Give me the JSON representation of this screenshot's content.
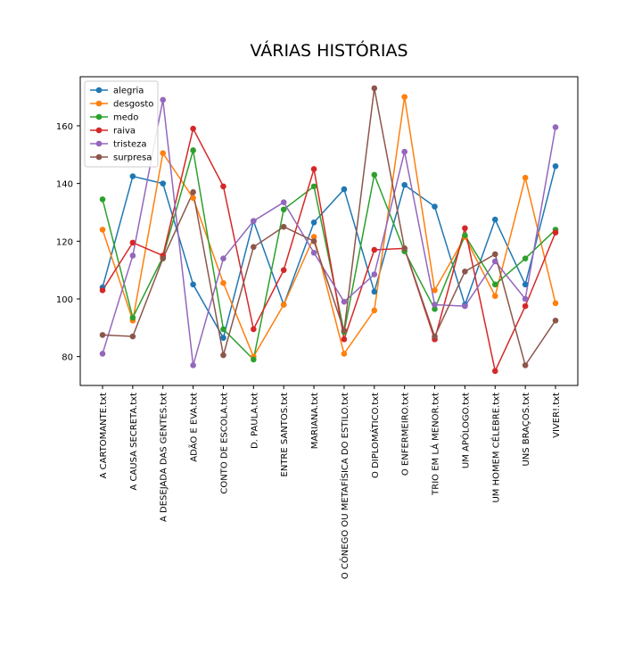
{
  "chart_data": {
    "type": "line",
    "title": "VÁRIAS HISTÓRIAS",
    "xlabel": "",
    "ylabel": "",
    "categories": [
      "A CARTOMANTE.txt",
      "A CAUSA SECRETA.txt",
      "A DESEJADA DAS GENTES.txt",
      "ADÃO E EVA.txt",
      "CONTO DE ESCOLA.txt",
      "D. PAULA.txt",
      "ENTRE SANTOS.txt",
      "MARIANA.txt",
      "O CÔNEGO OU METAFÍSICA DO ESTILO.txt",
      "O DIPLOMÁTICO.txt",
      "O ENFERMEIRO.txt",
      "TRIO EM LÁ MENOR.txt",
      "UM APÓLOGO.txt",
      "UM HOMEM CÉLEBRE.txt",
      "UNS BRAÇOS.txt",
      "VIVER!.txt"
    ],
    "ylim": [
      70,
      177
    ],
    "yticks": [
      80,
      100,
      120,
      140,
      160
    ],
    "grid": false,
    "legend_position": "top-left",
    "series": [
      {
        "name": "alegria",
        "color": "#1f77b4",
        "values": [
          104,
          142.5,
          140,
          105,
          86.5,
          127,
          98,
          126.5,
          138,
          102.5,
          139.5,
          132,
          98,
          127.5,
          105,
          146
        ]
      },
      {
        "name": "desgosto",
        "color": "#ff7f0e",
        "values": [
          124,
          92.5,
          150.5,
          135,
          105.5,
          80,
          98,
          121.5,
          81,
          96,
          170,
          103,
          121.5,
          101,
          142,
          98.5
        ]
      },
      {
        "name": "medo",
        "color": "#2ca02c",
        "values": [
          134.5,
          93.5,
          114.5,
          151.5,
          89.5,
          79,
          131,
          139,
          88.5,
          143,
          116.5,
          96.5,
          122,
          105,
          114,
          124
        ]
      },
      {
        "name": "raiva",
        "color": "#d62728",
        "values": [
          103,
          119.5,
          115,
          159,
          139,
          89.5,
          110,
          145,
          86,
          117,
          117.5,
          86,
          124.5,
          75,
          97.5,
          123
        ]
      },
      {
        "name": "tristeza",
        "color": "#9467bd",
        "values": [
          81,
          115,
          169,
          77,
          114,
          127,
          133.5,
          116,
          99,
          108.5,
          151,
          98,
          97.5,
          113,
          100,
          159.5
        ]
      },
      {
        "name": "surpresa",
        "color": "#8c564b",
        "values": [
          87.5,
          87,
          114,
          137,
          80.5,
          118,
          125,
          120,
          89,
          173,
          117.5,
          87,
          109.5,
          115.5,
          77,
          92.5
        ]
      }
    ]
  }
}
